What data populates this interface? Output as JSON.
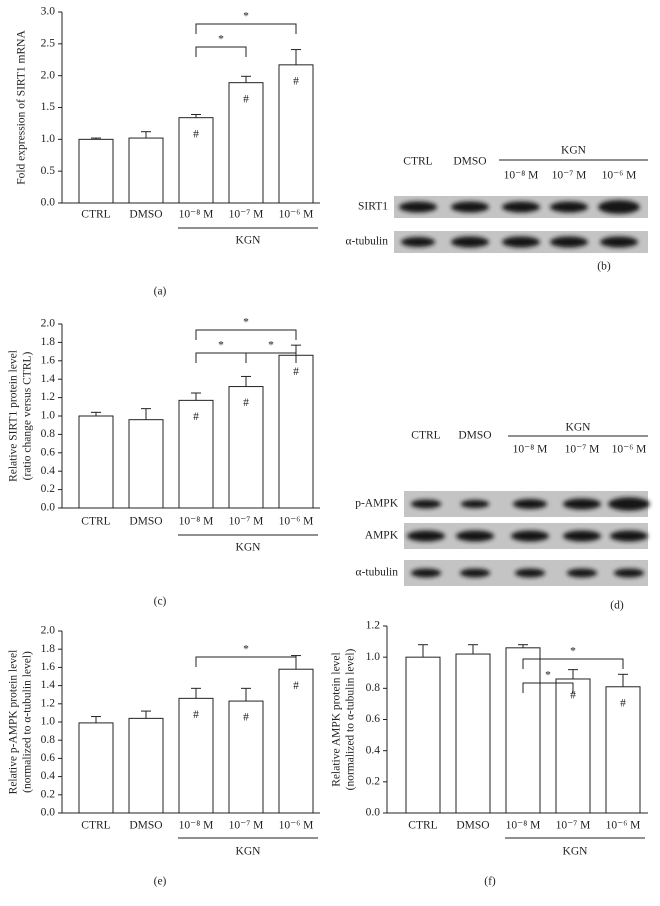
{
  "chart_data": [
    {
      "type": "bar",
      "panel_label": "(a)",
      "ylabel": [
        "Fold expression of SIRT1 mRNA"
      ],
      "categories": [
        "CTRL",
        "DMSO",
        "10⁻⁸ M",
        "10⁻⁷ M",
        "10⁻⁶ M"
      ],
      "values": [
        1.0,
        1.02,
        1.34,
        1.89,
        2.17
      ],
      "errors": [
        0.02,
        0.1,
        0.05,
        0.1,
        0.24
      ],
      "hash_labels": [
        null,
        null,
        "#",
        "#",
        "#"
      ],
      "brackets": [
        {
          "from": 2,
          "to": 3,
          "label": "*"
        },
        {
          "from": 2,
          "to": 4,
          "label": "*"
        }
      ],
      "group": {
        "label": "KGN",
        "from": 2,
        "to": 4
      },
      "color": "#ffffff",
      "ylim": [
        0,
        3
      ],
      "yticks": [
        {
          "value": 0,
          "label": "0.0"
        },
        0.5,
        {
          "value": 1,
          "label": "1.0"
        },
        1.5,
        {
          "value": 2,
          "label": "2.0"
        },
        2.5,
        {
          "value": 3,
          "label": "3.0"
        }
      ]
    },
    {
      "type": "bar",
      "panel_label": "(c)",
      "ylabel": [
        "Relative SIRT1 protein level",
        "(ratio change versus CTRL)"
      ],
      "categories": [
        "CTRL",
        "DMSO",
        "10⁻⁸ M",
        "10⁻⁷ M",
        "10⁻⁶ M"
      ],
      "values": [
        1.0,
        0.96,
        1.17,
        1.32,
        1.66
      ],
      "errors": [
        0.04,
        0.12,
        0.08,
        0.11,
        0.11
      ],
      "hash_labels": [
        null,
        null,
        "#",
        "#",
        "#"
      ],
      "brackets": [
        {
          "from": 2,
          "to": 3,
          "label": "*"
        },
        {
          "from": 3,
          "to": 4,
          "label": "*"
        },
        {
          "from": 2,
          "to": 4,
          "label": "*"
        }
      ],
      "group": {
        "label": "KGN",
        "from": 2,
        "to": 4
      },
      "color": "#ffffff",
      "ylim": [
        0,
        2
      ],
      "yticks": [
        {
          "value": 0,
          "label": "0.0"
        },
        0.2,
        0.4,
        0.6,
        0.8,
        {
          "value": 1,
          "label": "1.0"
        },
        1.2,
        1.4,
        1.6,
        1.8,
        {
          "value": 2,
          "label": "2.0"
        }
      ]
    },
    {
      "type": "bar",
      "panel_label": "(e)",
      "ylabel": [
        "Relative p-AMPK protein level",
        "(normalized to α-tubulin level)"
      ],
      "categories": [
        "CTRL",
        "DMSO",
        "10⁻⁸ M",
        "10⁻⁷ M",
        "10⁻⁶ M"
      ],
      "values": [
        0.99,
        1.04,
        1.26,
        1.23,
        1.58
      ],
      "errors": [
        0.07,
        0.08,
        0.11,
        0.14,
        0.15
      ],
      "hash_labels": [
        null,
        null,
        "#",
        "#",
        "#"
      ],
      "brackets": [
        {
          "from": 2,
          "to": 4,
          "label": "*"
        }
      ],
      "group": {
        "label": "KGN",
        "from": 2,
        "to": 4
      },
      "color": "#ffffff",
      "ylim": [
        0,
        2
      ],
      "yticks": [
        {
          "value": 0,
          "label": "0.0"
        },
        0.2,
        0.4,
        0.6,
        0.8,
        {
          "value": 1,
          "label": "1.0"
        },
        1.2,
        1.4,
        1.6,
        1.8,
        {
          "value": 2,
          "label": "2.0"
        }
      ]
    },
    {
      "type": "bar",
      "panel_label": "(f)",
      "ylabel": [
        "Relative AMPK protein level",
        "(normalized to α-tubulin level)"
      ],
      "categories": [
        "CTRL",
        "DMSO",
        "10⁻⁸ M",
        "10⁻⁷ M",
        "10⁻⁶ M"
      ],
      "values": [
        1.0,
        1.02,
        1.06,
        0.86,
        0.81
      ],
      "errors": [
        0.08,
        0.06,
        0.02,
        0.06,
        0.08
      ],
      "hash_labels": [
        null,
        null,
        null,
        "#",
        "#"
      ],
      "brackets": [
        {
          "from": 2,
          "to": 3,
          "label": "*"
        },
        {
          "from": 2,
          "to": 4,
          "label": "*"
        }
      ],
      "group": {
        "label": "KGN",
        "from": 2,
        "to": 4
      },
      "color": "#ffffff",
      "ylim": [
        0,
        1.2
      ],
      "yticks": [
        {
          "value": 0,
          "label": "0.0"
        },
        0.2,
        0.4,
        0.6,
        0.8,
        {
          "value": 1,
          "label": "1.0"
        },
        1.2
      ]
    }
  ],
  "blots": [
    {
      "panel_label": "(b)",
      "columns": [
        "CTRL",
        "DMSO"
      ],
      "group": "KGN",
      "subcolumns": [
        "10⁻⁸ M",
        "10⁻⁷ M",
        "10⁻⁶ M"
      ],
      "rows": [
        "SIRT1",
        "α-tubulin"
      ]
    },
    {
      "panel_label": "(d)",
      "columns": [
        "CTRL",
        "DMSO"
      ],
      "group": "KGN",
      "subcolumns": [
        "10⁻⁸ M",
        "10⁻⁷ M",
        "10⁻⁶ M"
      ],
      "rows": [
        "p-AMPK",
        "AMPK",
        "α-tubulin"
      ]
    }
  ]
}
